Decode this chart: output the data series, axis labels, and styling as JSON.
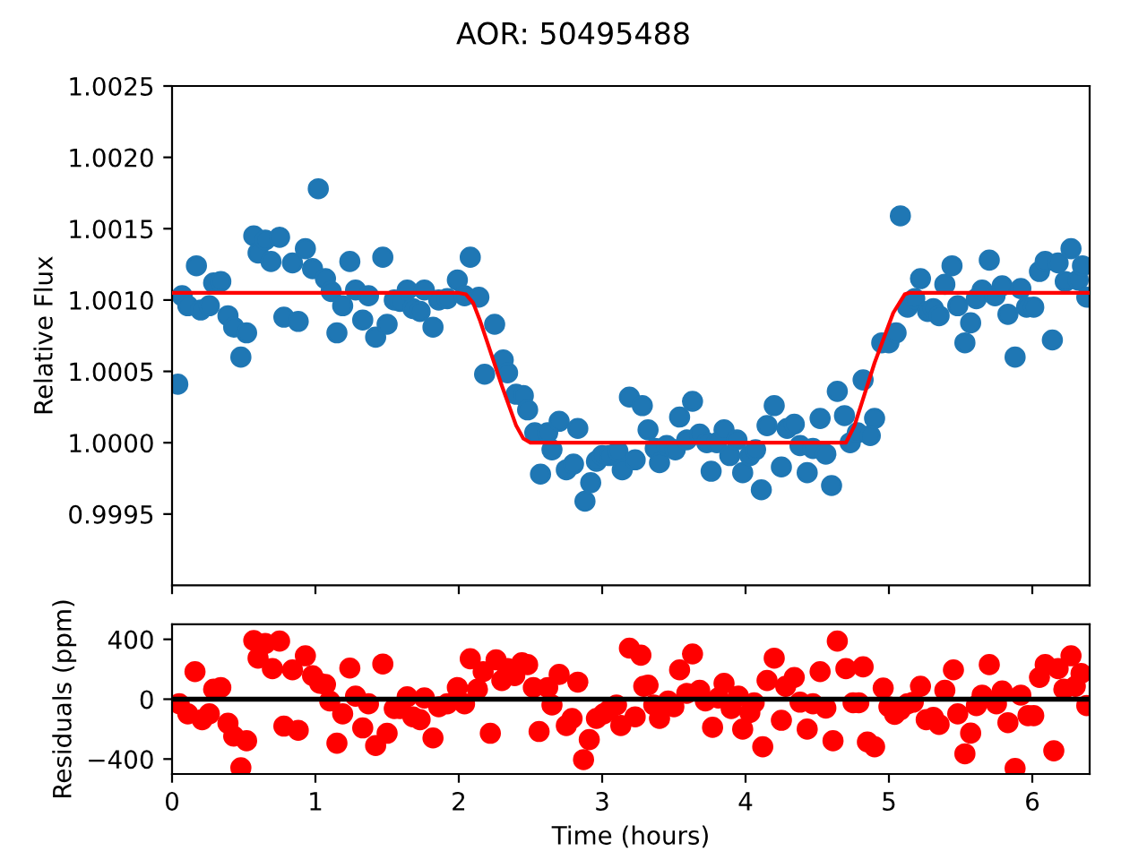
{
  "chart_data": [
    {
      "type": "scatter",
      "title": "AOR: 50495488",
      "ylabel": "Relative Flux",
      "xlim": [
        0,
        6.4
      ],
      "xticks": [
        0,
        1,
        2,
        3,
        4,
        5,
        6
      ],
      "ylim": [
        0.999,
        1.0025
      ],
      "yticks": [
        {
          "value": 0.9995,
          "label": "0.9995"
        },
        {
          "value": 1.0,
          "label": "1.0000"
        },
        {
          "value": 1.0005,
          "label": "1.0005"
        },
        {
          "value": 1.001,
          "label": "1.0010"
        },
        {
          "value": 1.0015,
          "label": "1.0015"
        },
        {
          "value": 1.002,
          "label": "1.0020"
        },
        {
          "value": 1.0025,
          "label": "1.0025"
        }
      ],
      "tick_labels": "y",
      "grid": false,
      "series": [
        {
          "marker": "circle",
          "color": "#1f77b4",
          "x": [
            0.04,
            0.07,
            0.11,
            0.17,
            0.2,
            0.26,
            0.29,
            0.34,
            0.39,
            0.43,
            0.48,
            0.52,
            0.57,
            0.6,
            0.65,
            0.69,
            0.75,
            0.78,
            0.84,
            0.88,
            0.93,
            0.98,
            1.02,
            1.07,
            1.11,
            1.15,
            1.19,
            1.24,
            1.28,
            1.33,
            1.37,
            1.42,
            1.47,
            1.5,
            1.55,
            1.59,
            1.64,
            1.68,
            1.73,
            1.76,
            1.82,
            1.86,
            1.92,
            1.99,
            2.04,
            2.08,
            2.14,
            2.18,
            2.25,
            2.31,
            2.34,
            2.4,
            2.45,
            2.48,
            2.53,
            2.57,
            2.62,
            2.65,
            2.7,
            2.75,
            2.8,
            2.83,
            2.88,
            2.92,
            2.96,
            3.0,
            3.05,
            3.11,
            3.14,
            3.19,
            3.23,
            3.28,
            3.32,
            3.37,
            3.4,
            3.45,
            3.51,
            3.54,
            3.59,
            3.63,
            3.68,
            3.73,
            3.76,
            3.8,
            3.85,
            3.89,
            3.94,
            3.98,
            4.03,
            4.07,
            4.11,
            4.15,
            4.2,
            4.25,
            4.29,
            4.34,
            4.38,
            4.43,
            4.47,
            4.52,
            4.56,
            4.6,
            4.64,
            4.69,
            4.73,
            4.78,
            4.82,
            4.87,
            4.9,
            4.95,
            5.0,
            5.05,
            5.08,
            5.13,
            5.18,
            5.22,
            5.27,
            5.31,
            5.35,
            5.39,
            5.44,
            5.48,
            5.53,
            5.57,
            5.61,
            5.65,
            5.7,
            5.74,
            5.79,
            5.83,
            5.88,
            5.92,
            5.96,
            6.01,
            6.05,
            6.09,
            6.14,
            6.18,
            6.23,
            6.27,
            6.32,
            6.35,
            6.38
          ],
          "values": [
            1.00041,
            1.00103,
            1.00096,
            1.00124,
            1.00093,
            1.00096,
            1.00112,
            1.00113,
            1.00089,
            1.00081,
            1.0006,
            1.00077,
            1.00145,
            1.00133,
            1.00142,
            1.00127,
            1.00144,
            1.00088,
            1.00126,
            1.00085,
            1.00136,
            1.00122,
            1.00178,
            1.00115,
            1.00106,
            1.00077,
            1.00096,
            1.00127,
            1.00107,
            1.00086,
            1.00103,
            1.00074,
            1.0013,
            1.00083,
            1.001,
            1.00099,
            1.00107,
            1.00094,
            1.00092,
            1.00107,
            1.00081,
            1.001,
            1.00101,
            1.00114,
            1.00103,
            1.0013,
            1.00102,
            1.00048,
            1.00083,
            1.00058,
            1.00049,
            1.00034,
            1.00033,
            1.00023,
            1.00007,
            0.99978,
            1.00007,
            0.99995,
            1.00015,
            0.99981,
            0.99985,
            1.0001,
            0.99959,
            0.99972,
            0.99987,
            0.99991,
            0.99991,
            0.99994,
            0.99981,
            1.00032,
            0.99988,
            1.00026,
            1.00009,
            0.99996,
            0.99986,
            0.99998,
            0.99995,
            1.00018,
            1.00002,
            1.00029,
            1.00006,
            1.0,
            0.9998,
            1.0,
            1.00009,
            0.99991,
            1.00002,
            0.99979,
            0.99991,
            0.99995,
            0.99967,
            1.00012,
            1.00026,
            0.99983,
            1.0001,
            1.00013,
            0.99998,
            0.99979,
            0.99996,
            1.00017,
            0.99992,
            0.9997,
            1.00036,
            1.00019,
            1.0,
            1.00007,
            1.00044,
            1.00005,
            1.00017,
            1.0007,
            1.0007,
            1.00077,
            1.00159,
            1.00095,
            1.00101,
            1.00115,
            1.00092,
            1.00094,
            1.00089,
            1.00111,
            1.00124,
            1.00096,
            1.0007,
            1.00084,
            1.00101,
            1.00107,
            1.00128,
            1.00103,
            1.0011,
            1.0009,
            1.0006,
            1.00108,
            1.00095,
            1.00095,
            1.0012,
            1.00127,
            1.00072,
            1.00126,
            1.00113,
            1.00136,
            1.00114,
            1.00124,
            1.00102
          ]
        },
        {
          "type": "line",
          "marker": "none",
          "line_style": "solid",
          "color": "#ff0000",
          "x": [
            0,
            2.0,
            2.05,
            2.1,
            2.15,
            2.2,
            2.3,
            2.4,
            2.45,
            2.5,
            4.7,
            4.76,
            4.9,
            5.03,
            5.11,
            5.14,
            6.4
          ],
          "values": [
            1.00105,
            1.00105,
            1.00104,
            1.00098,
            1.00085,
            1.0007,
            1.0004,
            1.00012,
            1.00003,
            1.0,
            1.0,
            1.00012,
            1.00056,
            1.00091,
            1.00104,
            1.00105,
            1.00105
          ]
        }
      ]
    },
    {
      "type": "scatter",
      "xlabel": "Time (hours)",
      "ylabel": "Residuals (ppm)",
      "xlim": [
        0,
        6.4
      ],
      "xticks": [
        0,
        1,
        2,
        3,
        4,
        5,
        6
      ],
      "ylim": [
        -500,
        500
      ],
      "yticks": [
        {
          "value": -400,
          "label": "−400"
        },
        0,
        400
      ],
      "grid": false,
      "ref_lines": [
        {
          "axis": "y",
          "value": 0,
          "color": "#000000",
          "line_style": "solid"
        }
      ],
      "series": [
        {
          "marker": "circle",
          "color": "#ff0000",
          "x": [
            0.05,
            0.11,
            0.16,
            0.21,
            0.26,
            0.29,
            0.34,
            0.39,
            0.43,
            0.48,
            0.52,
            0.57,
            0.6,
            0.65,
            0.7,
            0.75,
            0.78,
            0.84,
            0.88,
            0.93,
            0.98,
            1.03,
            1.07,
            1.1,
            1.15,
            1.19,
            1.24,
            1.28,
            1.33,
            1.37,
            1.42,
            1.47,
            1.5,
            1.55,
            1.59,
            1.64,
            1.68,
            1.73,
            1.76,
            1.82,
            1.86,
            1.92,
            1.99,
            2.04,
            2.08,
            2.13,
            2.17,
            2.22,
            2.26,
            2.3,
            2.34,
            2.39,
            2.44,
            2.48,
            2.52,
            2.56,
            2.62,
            2.65,
            2.7,
            2.75,
            2.79,
            2.83,
            2.87,
            2.91,
            2.96,
            3.01,
            3.05,
            3.1,
            3.13,
            3.19,
            3.23,
            3.27,
            3.29,
            3.32,
            3.36,
            3.4,
            3.46,
            3.5,
            3.54,
            3.59,
            3.63,
            3.68,
            3.72,
            3.77,
            3.81,
            3.85,
            3.9,
            3.95,
            3.98,
            4.03,
            4.06,
            4.12,
            4.15,
            4.2,
            4.25,
            4.28,
            4.34,
            4.38,
            4.43,
            4.47,
            4.52,
            4.56,
            4.61,
            4.64,
            4.7,
            4.75,
            4.79,
            4.82,
            4.85,
            4.9,
            4.96,
            5.0,
            5.04,
            5.08,
            5.13,
            5.17,
            5.22,
            5.26,
            5.31,
            5.35,
            5.39,
            5.45,
            5.48,
            5.53,
            5.57,
            5.61,
            5.65,
            5.7,
            5.75,
            5.79,
            5.83,
            5.88,
            5.92,
            5.97,
            6.01,
            6.05,
            6.09,
            6.15,
            6.18,
            6.22,
            6.27,
            6.3,
            6.34,
            6.38
          ],
          "values": [
            -31,
            -98,
            184,
            -137,
            -98,
            67,
            78,
            -161,
            -247,
            -459,
            -278,
            392,
            274,
            372,
            204,
            388,
            -180,
            196,
            -208,
            290,
            157,
            106,
            98,
            -12,
            -294,
            -98,
            208,
            20,
            -192,
            -31,
            -310,
            235,
            -228,
            -63,
            -63,
            16,
            -118,
            -137,
            8,
            -259,
            -51,
            -31,
            78,
            -31,
            270,
            67,
            184,
            -228,
            263,
            125,
            204,
            157,
            243,
            231,
            78,
            -216,
            78,
            -39,
            165,
            -176,
            -129,
            114,
            -404,
            -270,
            -129,
            -98,
            -71,
            -39,
            -176,
            341,
            -118,
            294,
            86,
            94,
            -39,
            -129,
            -12,
            -51,
            196,
            39,
            302,
            59,
            -12,
            -188,
            8,
            106,
            -63,
            20,
            -200,
            -90,
            -24,
            -318,
            125,
            274,
            -141,
            86,
            145,
            -20,
            -200,
            -31,
            184,
            -59,
            -278,
            388,
            204,
            -24,
            -24,
            216,
            -286,
            -318,
            74,
            -51,
            -102,
            -71,
            -31,
            -20,
            86,
            -137,
            -122,
            -169,
            59,
            196,
            -98,
            -365,
            -227,
            -43,
            27,
            231,
            -31,
            55,
            -157,
            -463,
            27,
            -110,
            -110,
            145,
            231,
            -345,
            204,
            67,
            290,
            86,
            172,
            -43
          ]
        }
      ]
    }
  ]
}
